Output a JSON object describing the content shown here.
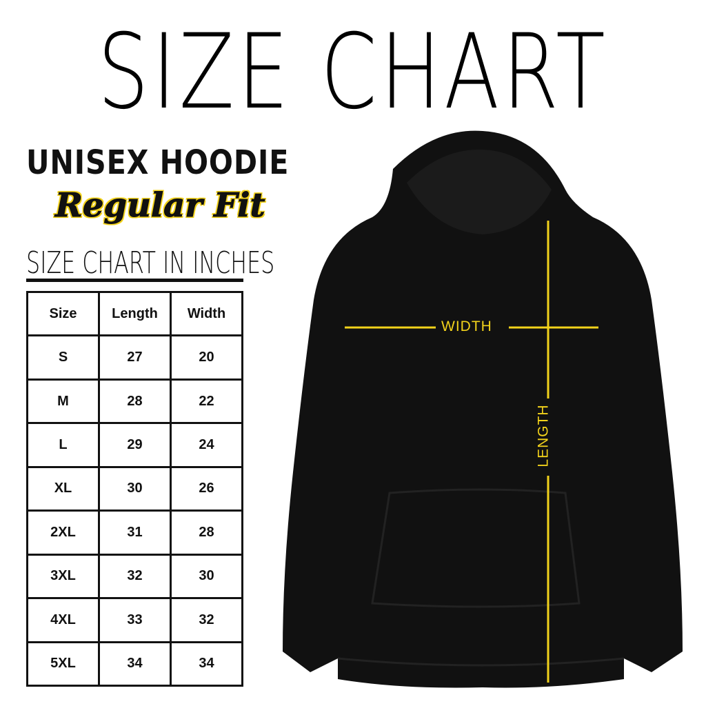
{
  "title": "SIZE CHART",
  "product": "UNISEX HOODIE",
  "fit": "Regular Fit",
  "table_title": "SIZE CHART IN INCHES",
  "table": {
    "headers": [
      "Size",
      "Length",
      "Width"
    ],
    "rows": [
      [
        "S",
        "27",
        "20"
      ],
      [
        "M",
        "28",
        "22"
      ],
      [
        "L",
        "29",
        "24"
      ],
      [
        "XL",
        "30",
        "26"
      ],
      [
        "2XL",
        "31",
        "28"
      ],
      [
        "3XL",
        "32",
        "30"
      ],
      [
        "4XL",
        "33",
        "32"
      ],
      [
        "5XL",
        "34",
        "34"
      ]
    ]
  },
  "diagram": {
    "width_label": "WIDTH",
    "length_label": "LENGTH",
    "line_color": "#f2d21b",
    "garment_color": "#111111"
  }
}
